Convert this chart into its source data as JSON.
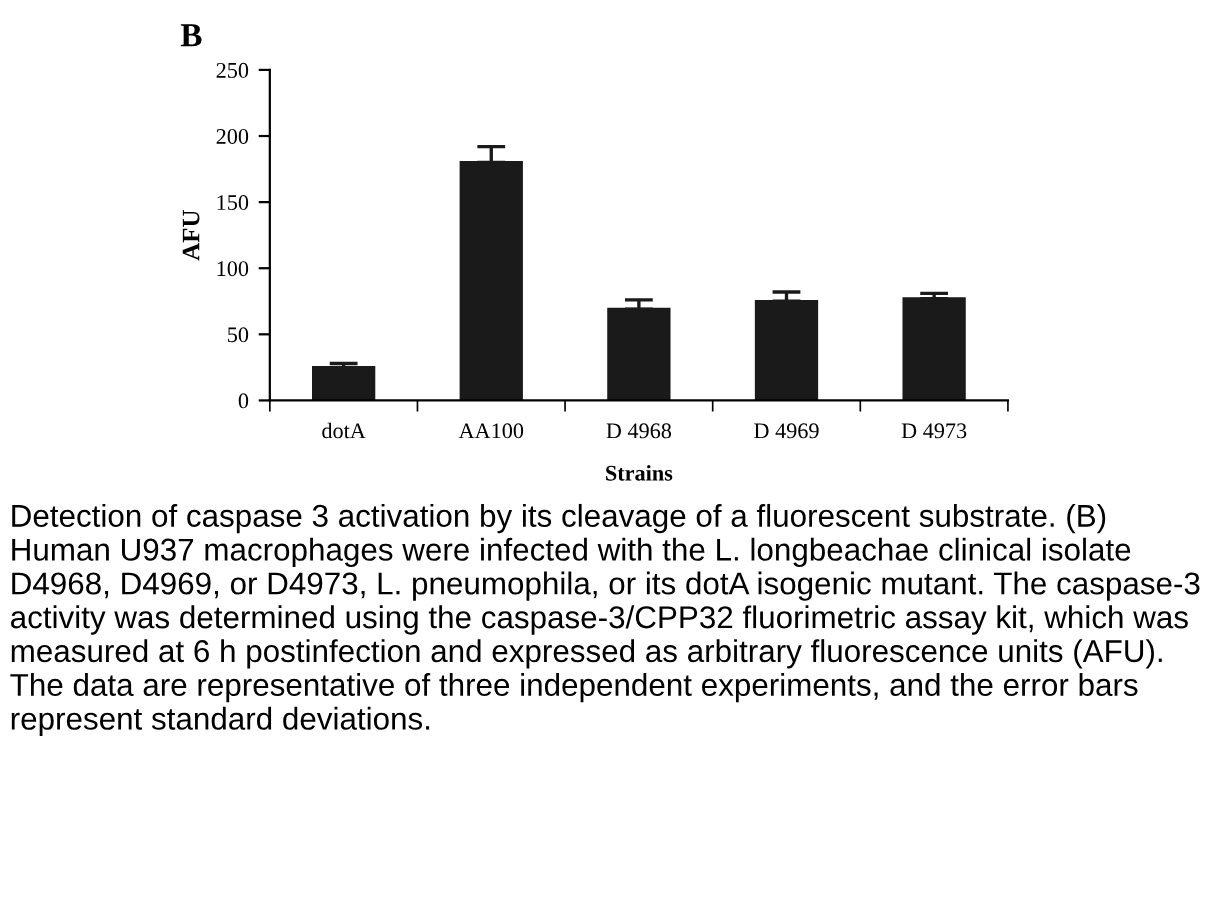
{
  "chart_data": {
    "type": "bar",
    "categories": [
      "dotA",
      "AA100",
      "D 4968",
      "D 4969",
      "D 4973"
    ],
    "values": [
      25,
      180,
      69,
      75,
      77
    ],
    "errors": [
      3,
      12,
      7,
      7,
      4
    ],
    "color": "#1a1a1a",
    "xlabel": "Strains",
    "ylabel": "AFU",
    "ylim": [
      0,
      250
    ],
    "yticks": [
      0,
      50,
      100,
      150,
      200,
      250
    ],
    "grid": false,
    "legend": false,
    "annotations": [
      "B",
      "Detection of caspase 3 activation by its cleavage of a fluorescent substrate. (B) Human U937 macrophages were infected with the L. longbeachae clinical isolate D4968, D4969, or D4973, L. pneumophila, or its dotA isogenic mutant. The caspase-3 activity was determined using the caspase-3/CPP32 fluorimetric assay kit, which was measured at 6 h postinfection and expressed as arbitrary fluorescence units (AFU). The data are representative of three independent experiments, and the error bars represent standard deviations."
    ]
  }
}
